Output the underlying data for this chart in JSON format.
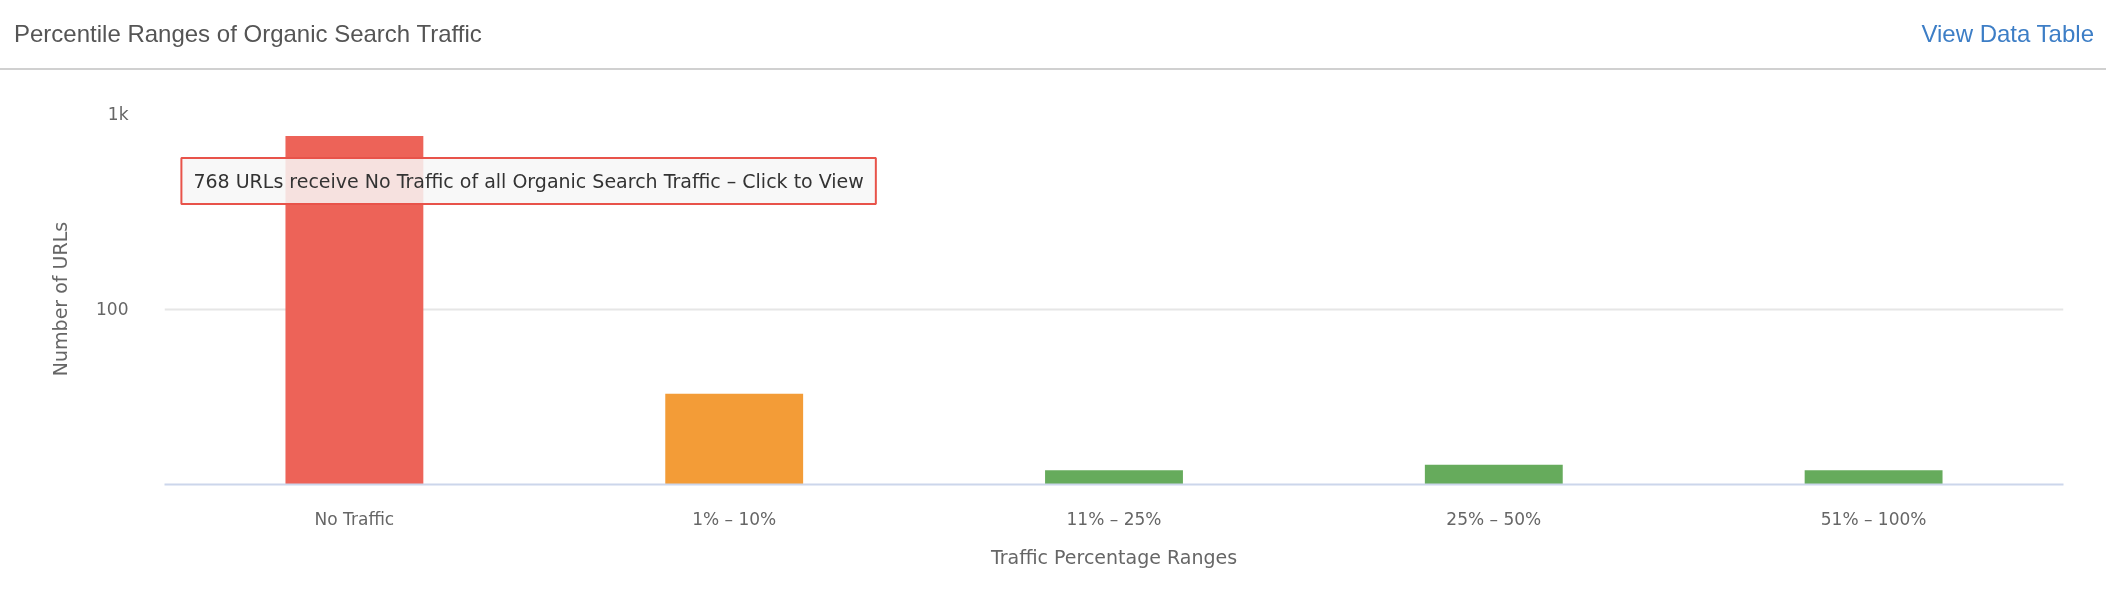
{
  "chart_data": {
    "type": "bar",
    "title": "Percentile Ranges of Organic Search Traffic",
    "categories": [
      "No Traffic",
      "1% – 10%",
      "11% – 25%",
      "25% – 50%",
      "51% – 100%"
    ],
    "values": [
      768,
      37,
      15,
      16,
      15
    ],
    "colors": [
      "#ed6358",
      "#f39c37",
      "#66ab5c",
      "#66ab5c",
      "#66ab5c"
    ],
    "xlabel": "Traffic Percentage Ranges",
    "ylabel": "Number of URLs",
    "log": true,
    "ylim": [
      12.7,
      1000
    ],
    "yticks": [
      100,
      {
        "value": 1000,
        "label": "1k"
      }
    ],
    "grid": "y",
    "annotations": [
      {
        "text": "768 URLs receive No Traffic of all Organic Search Traffic – Click to View",
        "x": "No Traffic",
        "y": 768
      },
      "View Data Table"
    ]
  }
}
